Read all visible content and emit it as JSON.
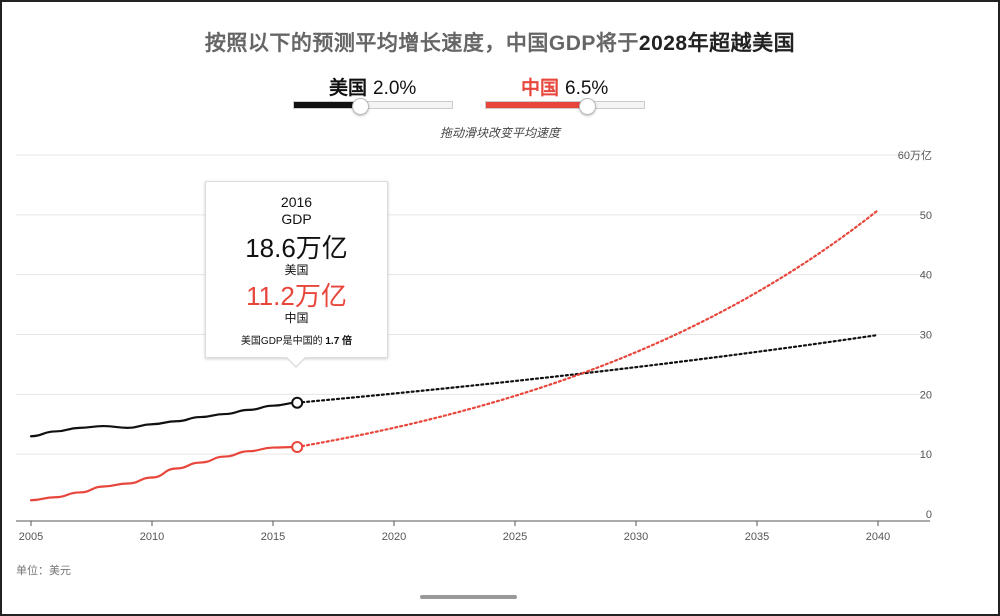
{
  "title": {
    "part1": "按照以下的预测平均增长速度，中国GDP将于",
    "highlight": "2028年超越美国"
  },
  "sliders": [
    {
      "country": "美国",
      "rate": "2.0%",
      "rate_value": 2.0,
      "fill_fraction": 0.42,
      "color": "#111111"
    },
    {
      "country": "中国",
      "rate": "6.5%",
      "rate_value": 6.5,
      "fill_fraction": 0.64,
      "color": "#e8463b"
    }
  ],
  "hint": "拖动滑块改变平均速度",
  "tooltip": {
    "year": "2016",
    "label": "GDP",
    "us_value": "18.6万亿",
    "us_label": "美国",
    "cn_value": "11.2万亿",
    "cn_label": "中国",
    "ratio_prefix": "美国GDP是中国的",
    "ratio_value": "1.7 倍"
  },
  "unit_note": "单位：美元",
  "chart_data": {
    "type": "line",
    "x_range": [
      2005,
      2040
    ],
    "y_range": [
      0,
      60
    ],
    "x_ticks": [
      "2005",
      "2010",
      "2015",
      "2020",
      "2025",
      "2030",
      "2035",
      "2040"
    ],
    "y_ticks": [
      "0",
      "10",
      "20",
      "30",
      "40",
      "50",
      "60万亿"
    ],
    "grid": true,
    "series": [
      {
        "name": "美国",
        "color": "#111111",
        "historical": [
          [
            2005,
            13.0
          ],
          [
            2006,
            13.8
          ],
          [
            2007,
            14.4
          ],
          [
            2008,
            14.7
          ],
          [
            2009,
            14.4
          ],
          [
            2010,
            15.0
          ],
          [
            2011,
            15.5
          ],
          [
            2012,
            16.2
          ],
          [
            2013,
            16.7
          ],
          [
            2014,
            17.4
          ],
          [
            2015,
            18.1
          ],
          [
            2016,
            18.6
          ]
        ],
        "projection_rate": 0.02,
        "projection_end": 2040
      },
      {
        "name": "中国",
        "color": "#e8463b",
        "historical": [
          [
            2005,
            2.3
          ],
          [
            2006,
            2.8
          ],
          [
            2007,
            3.6
          ],
          [
            2008,
            4.6
          ],
          [
            2009,
            5.1
          ],
          [
            2010,
            6.1
          ],
          [
            2011,
            7.6
          ],
          [
            2012,
            8.6
          ],
          [
            2013,
            9.6
          ],
          [
            2014,
            10.5
          ],
          [
            2015,
            11.1
          ],
          [
            2016,
            11.2
          ]
        ],
        "projection_rate": 0.065,
        "projection_end": 2040
      }
    ]
  }
}
